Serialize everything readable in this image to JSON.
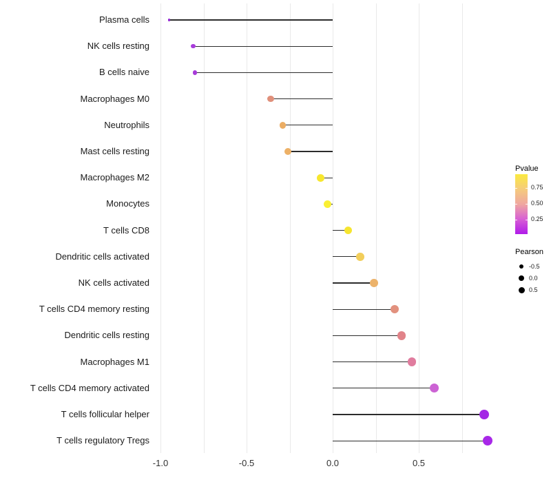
{
  "chart_data": {
    "type": "lollipop",
    "orientation": "horizontal",
    "title": "",
    "xlabel": "",
    "grid": "vertical-only",
    "xlim": [
      -1.04,
      0.99
    ],
    "x_ticks": [
      {
        "value": -1.0,
        "label": "-1.0"
      },
      {
        "value": -0.5,
        "label": "-0.5"
      },
      {
        "value": 0.0,
        "label": "0.0"
      },
      {
        "value": 0.5,
        "label": "0.5"
      }
    ],
    "minor_gridlines": [
      -0.75,
      -0.25,
      0.25,
      0.75
    ],
    "style": {
      "gridline_color": "#e9e9e9",
      "stem_color": "#2b2b2b",
      "background": "#ffffff"
    },
    "points": [
      {
        "label": "Plasma cells",
        "pearson": -0.95,
        "pvalue": 0.02,
        "color": "#9326d2"
      },
      {
        "label": "NK cells resting",
        "pearson": -0.81,
        "pvalue": 0.1,
        "color": "#a83cdb"
      },
      {
        "label": "B cells naive",
        "pearson": -0.8,
        "pvalue": 0.1,
        "color": "#a73bd9"
      },
      {
        "label": "Macrophages M0",
        "pearson": -0.36,
        "pvalue": 0.52,
        "color": "#e0907b"
      },
      {
        "label": "Neutrophils",
        "pearson": -0.29,
        "pvalue": 0.68,
        "color": "#ebad64"
      },
      {
        "label": "Mast cells resting",
        "pearson": -0.26,
        "pvalue": 0.7,
        "color": "#edb167"
      },
      {
        "label": "Macrophages M2",
        "pearson": -0.07,
        "pvalue": 0.93,
        "color": "#f7e72e"
      },
      {
        "label": "Monocytes",
        "pearson": -0.03,
        "pvalue": 0.97,
        "color": "#faef33"
      },
      {
        "label": "T cells CD8",
        "pearson": 0.09,
        "pvalue": 0.92,
        "color": "#f6e52f"
      },
      {
        "label": "Dendritic cells activated",
        "pearson": 0.16,
        "pvalue": 0.77,
        "color": "#f2ce5b"
      },
      {
        "label": "NK cells activated",
        "pearson": 0.24,
        "pvalue": 0.7,
        "color": "#ecb26a"
      },
      {
        "label": "T cells CD4 memory resting",
        "pearson": 0.36,
        "pvalue": 0.53,
        "color": "#e2917e"
      },
      {
        "label": "Dendritic cells resting",
        "pearson": 0.4,
        "pvalue": 0.47,
        "color": "#e18389"
      },
      {
        "label": "Macrophages M1",
        "pearson": 0.46,
        "pvalue": 0.37,
        "color": "#e07c9e"
      },
      {
        "label": "T cells CD4 memory activated",
        "pearson": 0.59,
        "pvalue": 0.21,
        "color": "#cc63d4"
      },
      {
        "label": "T cells follicular helper",
        "pearson": 0.88,
        "pvalue": 0.04,
        "color": "#a428e5"
      },
      {
        "label": "T cells regulatory  Tregs",
        "pearson": 0.9,
        "pvalue": 0.04,
        "color": "#a828e8"
      }
    ]
  },
  "legend": {
    "pvalue": {
      "title": "Pvalue",
      "gradient": [
        {
          "stop": 0.0,
          "color": "#b01be9"
        },
        {
          "stop": 0.25,
          "color": "#d75fd4"
        },
        {
          "stop": 0.5,
          "color": "#efa7a0"
        },
        {
          "stop": 0.75,
          "color": "#f5cb7c"
        },
        {
          "stop": 1.0,
          "color": "#fbea40"
        }
      ],
      "ticks": [
        {
          "value": 0.75,
          "label": "0.75"
        },
        {
          "value": 0.5,
          "label": "0.50"
        },
        {
          "value": 0.25,
          "label": "0.25"
        }
      ]
    },
    "pearson": {
      "title": "Pearson",
      "keys": [
        {
          "value": -0.5,
          "label": "-0.5"
        },
        {
          "value": 0.0,
          "label": "0.0"
        },
        {
          "value": 0.5,
          "label": "0.5"
        }
      ]
    }
  }
}
